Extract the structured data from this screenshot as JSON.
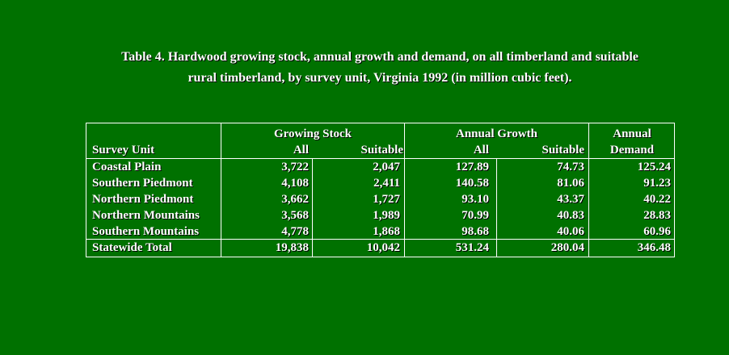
{
  "caption": {
    "line1": "Table 4.  Hardwood growing stock, annual growth and demand, on all timberland and suitable",
    "line2": "rural timberland, by survey unit, Virginia 1992 (in million cubic feet)."
  },
  "headers": {
    "survey_unit": "Survey Unit",
    "growing_stock": "Growing Stock",
    "annual_growth": "Annual Growth",
    "annual_demand_line1": "Annual",
    "annual_demand_line2": "Demand",
    "gs_all": "All",
    "gs_suitable": "Suitable",
    "ag_all": "All",
    "ag_suitable": "Suitable"
  },
  "rows": [
    {
      "unit": "Coastal Plain",
      "gs_all": "3,722",
      "gs_suitable": "2,047",
      "ag_all": "127.89",
      "ag_suitable": "74.73",
      "demand": "125.24"
    },
    {
      "unit": "Southern Piedmont",
      "gs_all": "4,108",
      "gs_suitable": "2,411",
      "ag_all": "140.58",
      "ag_suitable": "81.06",
      "demand": "91.23"
    },
    {
      "unit": "Northern Piedmont",
      "gs_all": "3,662",
      "gs_suitable": "1,727",
      "ag_all": "93.10",
      "ag_suitable": "43.37",
      "demand": "40.22"
    },
    {
      "unit": "Northern Mountains",
      "gs_all": "3,568",
      "gs_suitable": "1,989",
      "ag_all": "70.99",
      "ag_suitable": "40.83",
      "demand": "28.83"
    },
    {
      "unit": "Southern Mountains",
      "gs_all": "4,778",
      "gs_suitable": "1,868",
      "ag_all": "98.68",
      "ag_suitable": "40.06",
      "demand": "60.96"
    }
  ],
  "total": {
    "unit": "Statewide Total",
    "gs_all": "19,838",
    "gs_suitable": "10,042",
    "ag_all": "531.24",
    "ag_suitable": "280.04",
    "demand": "346.48"
  },
  "colors": {
    "background": "#007100",
    "text": "#ffffff",
    "rule": "#ffffff"
  }
}
